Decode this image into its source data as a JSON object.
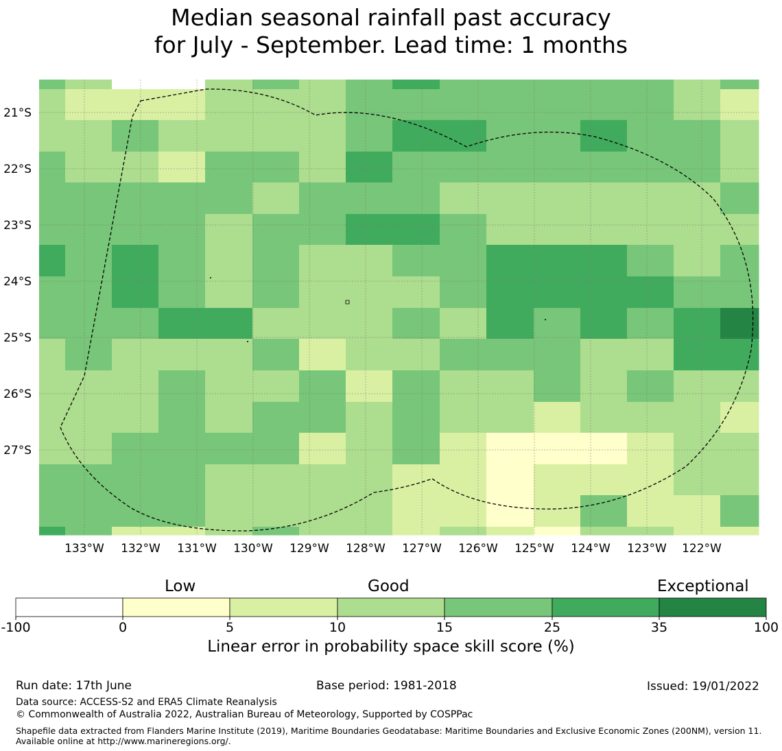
{
  "title": {
    "line1": "Median seasonal rainfall past accuracy",
    "line2": "for July - September. Lead time: 1 months"
  },
  "map": {
    "lon_labels": [
      "133°W",
      "132°W",
      "131°W",
      "130°W",
      "129°W",
      "128°W",
      "127°W",
      "126°W",
      "125°W",
      "124°W",
      "123°W",
      "122°W"
    ],
    "lat_labels": [
      "21°S",
      "22°S",
      "23°S",
      "24°S",
      "25°S",
      "26°S",
      "27°S"
    ],
    "grid_values": [
      [
        4,
        3,
        0,
        0,
        3,
        4,
        3,
        4,
        5,
        4,
        4,
        4,
        4,
        4,
        3,
        4
      ],
      [
        3,
        2,
        2,
        2,
        3,
        3,
        3,
        4,
        4,
        4,
        4,
        4,
        4,
        4,
        3,
        2
      ],
      [
        3,
        3,
        4,
        3,
        3,
        3,
        3,
        4,
        5,
        5,
        4,
        4,
        5,
        4,
        4,
        3
      ],
      [
        4,
        3,
        3,
        2,
        4,
        4,
        3,
        5,
        4,
        4,
        4,
        4,
        4,
        4,
        4,
        3
      ],
      [
        4,
        4,
        4,
        4,
        4,
        3,
        4,
        4,
        4,
        3,
        3,
        3,
        3,
        3,
        3,
        4
      ],
      [
        4,
        4,
        4,
        4,
        3,
        4,
        4,
        5,
        5,
        4,
        3,
        3,
        3,
        3,
        3,
        3
      ],
      [
        5,
        4,
        5,
        4,
        3,
        4,
        3,
        3,
        4,
        4,
        5,
        5,
        5,
        4,
        3,
        4
      ],
      [
        4,
        4,
        5,
        4,
        3,
        4,
        3,
        3,
        3,
        4,
        5,
        5,
        5,
        5,
        4,
        4
      ],
      [
        4,
        4,
        4,
        5,
        5,
        3,
        3,
        3,
        4,
        3,
        5,
        4,
        5,
        4,
        5,
        6
      ],
      [
        3,
        4,
        3,
        3,
        3,
        4,
        2,
        3,
        3,
        4,
        4,
        4,
        3,
        3,
        5,
        5
      ],
      [
        3,
        3,
        3,
        4,
        3,
        3,
        4,
        2,
        4,
        3,
        3,
        4,
        3,
        4,
        3,
        3
      ],
      [
        3,
        3,
        3,
        4,
        3,
        4,
        4,
        3,
        4,
        3,
        3,
        2,
        3,
        3,
        3,
        2
      ],
      [
        3,
        3,
        4,
        4,
        4,
        4,
        2,
        3,
        4,
        2,
        1,
        1,
        1,
        2,
        3,
        3
      ],
      [
        4,
        4,
        4,
        4,
        3,
        3,
        3,
        3,
        2,
        2,
        1,
        2,
        2,
        2,
        3,
        3
      ],
      [
        4,
        4,
        4,
        4,
        3,
        3,
        3,
        3,
        2,
        2,
        1,
        2,
        4,
        2,
        2,
        4
      ],
      [
        5,
        4,
        2,
        2,
        3,
        4,
        3,
        3,
        2,
        3,
        2,
        1,
        3,
        3,
        2,
        2
      ]
    ]
  },
  "legend": {
    "categories": [
      "Low",
      "Good",
      "Exceptional"
    ],
    "ticks": [
      "-100",
      "0",
      "5",
      "10",
      "15",
      "25",
      "35",
      "100"
    ],
    "colors": [
      "#ffffff",
      "#ffffcc",
      "#d9f0a3",
      "#addd8e",
      "#78c679",
      "#41ab5d",
      "#238443"
    ],
    "label": "Linear error in probability space skill score (%)"
  },
  "footer": {
    "run_date": "Run date: 17th June",
    "base_period": "Base period: 1981-2018",
    "issued": "Issued: 19/01/2022",
    "data_source": "Data source: ACCESS-S2 and ERA5 Climate Reanalysis",
    "copyright": "© Commonwealth of Australia 2022, Australian Bureau of Meteorology, Supported by COSPPac",
    "shapefile": "Shapefile data extracted from Flanders Marine Institute (2019), Maritime Boundaries Geodatabase: Maritime Boundaries and Exclusive Economic Zones (200NM), version 11. Available online at http://www.marineregions.org/."
  }
}
